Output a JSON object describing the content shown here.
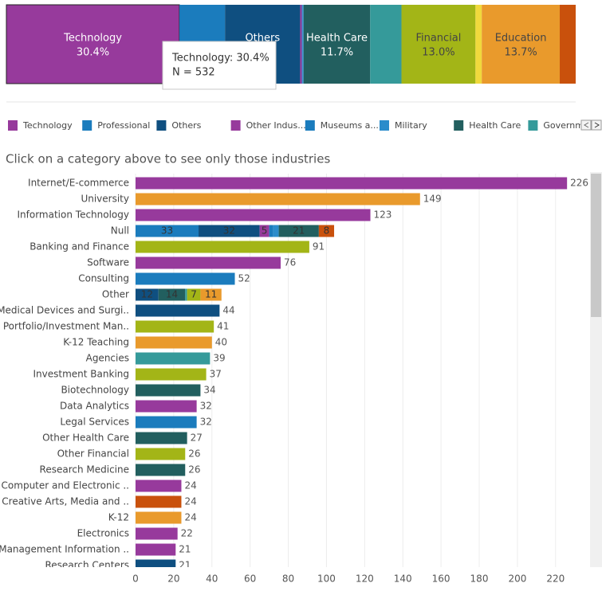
{
  "chart_data": [
    {
      "type": "stacked100",
      "xlim": [
        0,
        100
      ],
      "selected": 0,
      "segments": [
        {
          "name": "Technology",
          "value": 30.4,
          "value_label": "30.4%",
          "color": "#973a9c"
        },
        {
          "name": null,
          "value": 8.0,
          "value_label": null,
          "color": "#1b7cbd"
        },
        {
          "name": "Others",
          "value": 13.2,
          "value_label": null,
          "color": "#0f4f80"
        },
        {
          "name": null,
          "value": 0.3,
          "value_label": null,
          "color": "#973a9c"
        },
        {
          "name": null,
          "value": 0.1,
          "value_label": null,
          "color": "#1b7cbd"
        },
        {
          "name": null,
          "value": 0.2,
          "value_label": null,
          "color": "#2b8ccb"
        },
        {
          "name": "Health Care",
          "value": 11.7,
          "value_label": "11.7%",
          "color": "#225f5f"
        },
        {
          "name": null,
          "value": 5.5,
          "value_label": null,
          "color": "#359a9a"
        },
        {
          "name": "Financial",
          "value": 13.0,
          "value_label": "13.0%",
          "color": "#a3b517"
        },
        {
          "name": null,
          "value": 1.1,
          "value_label": null,
          "color": "#f0d93c"
        },
        {
          "name": "Education",
          "value": 13.7,
          "value_label": "13.7%",
          "color": "#e99a2c"
        },
        {
          "name": null,
          "value": 2.8,
          "value_label": null,
          "color": "#c9510c"
        }
      ],
      "tooltip": {
        "line1": "Technology: 30.4%",
        "line2": "N = 532"
      },
      "legend": [
        {
          "name": "Technology",
          "color": "#973a9c"
        },
        {
          "name": "Professional",
          "color": "#1b7cbd"
        },
        {
          "name": "Others",
          "color": "#0f4f80"
        },
        {
          "name": "Other Indus...",
          "color": "#973a9c"
        },
        {
          "name": "Museums a...",
          "color": "#1b7cbd"
        },
        {
          "name": "Military",
          "color": "#2b8ccb"
        },
        {
          "name": "Health Care",
          "color": "#225f5f"
        },
        {
          "name": "Governme",
          "color": "#359a9a"
        }
      ]
    },
    {
      "type": "bar",
      "title": "Click on a category above to see only those industries",
      "xlim": [
        0,
        237
      ],
      "xticks": [
        0,
        20,
        40,
        60,
        80,
        100,
        120,
        140,
        160,
        180,
        200,
        220
      ],
      "grid": true,
      "categories": [
        "Internet/E-commerce",
        "University",
        "Information Technology",
        "Null",
        "Banking and Finance",
        "Software",
        "Consulting",
        "Other",
        "Medical Devices and Surgi..",
        "Portfolio/Investment Man..",
        "K-12 Teaching",
        "Agencies",
        "Investment Banking",
        "Biotechnology",
        "Data Analytics",
        "Legal Services",
        "Other Health Care",
        "Other Financial",
        "Research Medicine",
        "Computer and Electronic ..",
        "Creative Arts, Media and ..",
        "K-12",
        "Electronics",
        "Management Information ..",
        "Research Centers"
      ],
      "segments": [
        [
          {
            "value": 226,
            "color": "#973a9c"
          }
        ],
        [
          {
            "value": 149,
            "color": "#e99a2c"
          }
        ],
        [
          {
            "value": 123,
            "color": "#973a9c"
          }
        ],
        [
          {
            "value": 33,
            "color": "#1b7cbd"
          },
          {
            "value": 32,
            "color": "#0f4f80"
          },
          {
            "value": 5,
            "color": "#973a9c"
          },
          {
            "value": 2,
            "color": "#1b7cbd"
          },
          {
            "value": 3,
            "color": "#2b8ccb"
          },
          {
            "value": 21,
            "color": "#225f5f"
          },
          {
            "value": 8,
            "color": "#c9510c"
          }
        ],
        [
          {
            "value": 91,
            "color": "#a3b517"
          }
        ],
        [
          {
            "value": 76,
            "color": "#973a9c"
          }
        ],
        [
          {
            "value": 52,
            "color": "#1b7cbd"
          }
        ],
        [
          {
            "value": 12,
            "color": "#0f4f80"
          },
          {
            "value": 14,
            "color": "#225f5f"
          },
          {
            "value": 1,
            "color": "#359a9a"
          },
          {
            "value": 7,
            "color": "#a3b517"
          },
          {
            "value": 11,
            "color": "#e99a2c"
          }
        ],
        [
          {
            "value": 44,
            "color": "#0f4f80"
          }
        ],
        [
          {
            "value": 41,
            "color": "#a3b517"
          }
        ],
        [
          {
            "value": 40,
            "color": "#e99a2c"
          }
        ],
        [
          {
            "value": 39,
            "color": "#359a9a"
          }
        ],
        [
          {
            "value": 37,
            "color": "#a3b517"
          }
        ],
        [
          {
            "value": 34,
            "color": "#225f5f"
          }
        ],
        [
          {
            "value": 32,
            "color": "#973a9c"
          }
        ],
        [
          {
            "value": 32,
            "color": "#1b7cbd"
          }
        ],
        [
          {
            "value": 27,
            "color": "#225f5f"
          }
        ],
        [
          {
            "value": 26,
            "color": "#a3b517"
          }
        ],
        [
          {
            "value": 26,
            "color": "#225f5f"
          }
        ],
        [
          {
            "value": 24,
            "color": "#973a9c"
          }
        ],
        [
          {
            "value": 24,
            "color": "#c9510c"
          }
        ],
        [
          {
            "value": 24,
            "color": "#e99a2c"
          }
        ],
        [
          {
            "value": 22,
            "color": "#973a9c"
          }
        ],
        [
          {
            "value": 21,
            "color": "#973a9c"
          }
        ],
        [
          {
            "value": 21,
            "color": "#0f4f80"
          }
        ]
      ]
    }
  ]
}
